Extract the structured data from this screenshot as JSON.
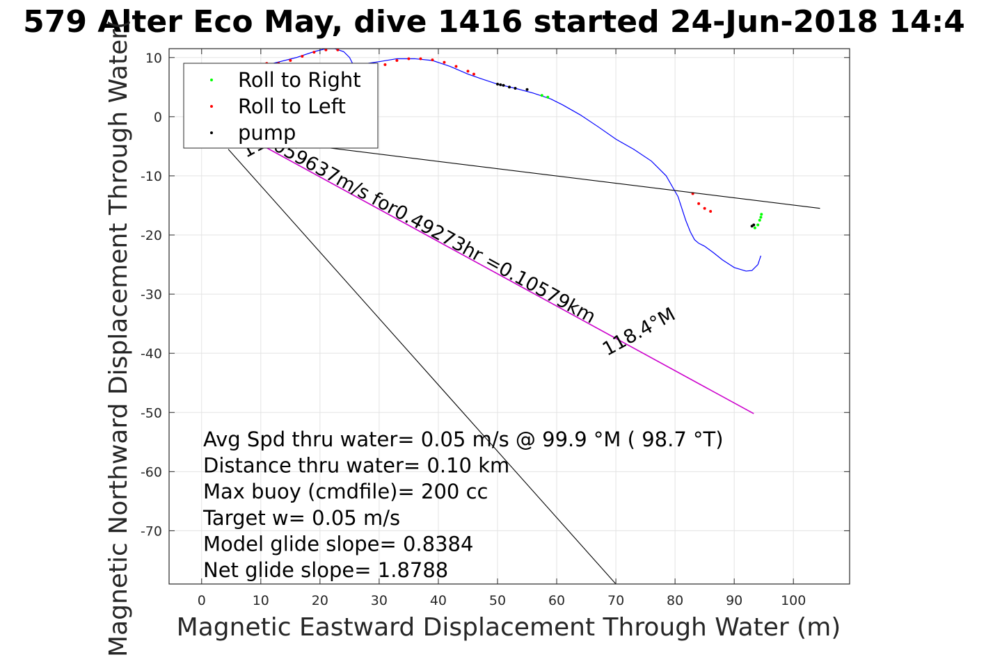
{
  "chart_data": {
    "type": "line",
    "title": "579 Alter Eco May, dive 1416 started 24-Jun-2018 14:4",
    "xlabel": "Magnetic Eastward Displacement Through Water (m)",
    "ylabel": "Magnetic Northward Displacement Through Water(",
    "xlim": [
      -5.5,
      109.5
    ],
    "ylim": [
      -79,
      11.5
    ],
    "xticks": [
      0,
      10,
      20,
      30,
      40,
      50,
      60,
      70,
      80,
      90,
      100
    ],
    "xtick_labels": [
      "0",
      "10",
      "20",
      "30",
      "40",
      "50",
      "60",
      "70",
      "80",
      "90",
      "100"
    ],
    "yticks": [
      10,
      0,
      -10,
      -20,
      -30,
      -40,
      -50,
      -60,
      -70
    ],
    "ytick_labels": [
      "10",
      "0",
      "-10",
      "-20",
      "-30",
      "-40",
      "-50",
      "-60",
      "-70"
    ],
    "grid": true,
    "legend_position": "top-left",
    "series": [
      {
        "role": "track",
        "color": "#0000ff",
        "x": [
          8.5,
          12,
          16,
          19,
          21,
          22.5,
          24,
          25,
          25.5,
          26.5,
          28,
          30,
          33,
          36,
          39,
          42,
          45,
          47,
          50,
          53,
          56,
          59,
          61,
          64,
          67,
          70,
          73,
          76,
          78.5,
          80.5,
          81.8,
          82.6,
          83.3,
          84,
          85,
          86.5,
          88,
          90,
          92,
          93,
          94,
          94.5
        ],
        "y": [
          9,
          9,
          10,
          11,
          11.5,
          11.5,
          11,
          10,
          9,
          8.7,
          9,
          9.3,
          9.8,
          9.8,
          9.5,
          8.5,
          7.2,
          6.5,
          5.5,
          4.8,
          4,
          3,
          2,
          0.3,
          -1.7,
          -3.8,
          -5.5,
          -7.5,
          -10,
          -13.5,
          -17.5,
          -19.5,
          -20.8,
          -21.4,
          -21.9,
          -23,
          -24.2,
          -25.5,
          -26.1,
          -26,
          -25,
          -23.5
        ]
      },
      {
        "name": "Roll to Right",
        "color": "#00ff00",
        "x": [
          57.5,
          58.5,
          93.5,
          94,
          94.3,
          94.5,
          94.6
        ],
        "y": [
          3.6,
          3.3,
          -18.8,
          -18.3,
          -17.5,
          -17,
          -16.5
        ]
      },
      {
        "name": "Roll to Left",
        "color": "#ff0000",
        "x": [
          11,
          13,
          15,
          17,
          19,
          21,
          23,
          31,
          33,
          35,
          37,
          39,
          41,
          43,
          45,
          46,
          83,
          84,
          85,
          86
        ],
        "y": [
          9,
          9,
          9.5,
          10.2,
          10.9,
          11.3,
          11.3,
          8.8,
          9.5,
          9.8,
          9.8,
          9.6,
          9.2,
          8.5,
          7.7,
          7.2,
          -13,
          -14.7,
          -15.5,
          -16
        ]
      },
      {
        "name": "pump",
        "color": "#000000",
        "x": [
          50,
          50.5,
          51,
          52,
          53,
          55,
          93,
          93.3
        ],
        "y": [
          5.5,
          5.4,
          5.3,
          5,
          4.8,
          4.6,
          -18.5,
          -18.3
        ]
      },
      {
        "role": "reference-line",
        "color": "#000000",
        "x": [
          3,
          104.5
        ],
        "y": [
          -3,
          -15.5
        ]
      },
      {
        "role": "reference-line",
        "color": "#000000",
        "x": [
          4.5,
          70
        ],
        "y": [
          -5.5,
          -79
        ]
      },
      {
        "role": "average-velocity-line",
        "color": "#cc00cc",
        "x": [
          10.5,
          93.3
        ],
        "y": [
          -5,
          -50.2
        ]
      }
    ],
    "legend": [
      "Roll to Right",
      "Roll to Left",
      "pump"
    ],
    "annotations": [
      {
        "text": ".059637m/s for0.49273hr =0.10579km",
        "x": 11,
        "y": -5,
        "rotation": -28.7
      },
      {
        "text": "118.4°M",
        "x": 7.5,
        "y": -7,
        "rotation": 28.7
      },
      {
        "text": "118.4°M",
        "x": 68.5,
        "y": -40.5,
        "rotation": 28.7
      }
    ],
    "stats": [
      "Avg Spd thru water=  0.05 m/s @  99.9 °M ( 98.7 °T)",
      "Distance thru water=  0.10 km",
      "Max buoy (cmdfile)= 200 cc",
      "Target w= 0.05 m/s",
      "Model glide slope= 0.8384",
      "Net glide slope= 1.8788"
    ]
  }
}
